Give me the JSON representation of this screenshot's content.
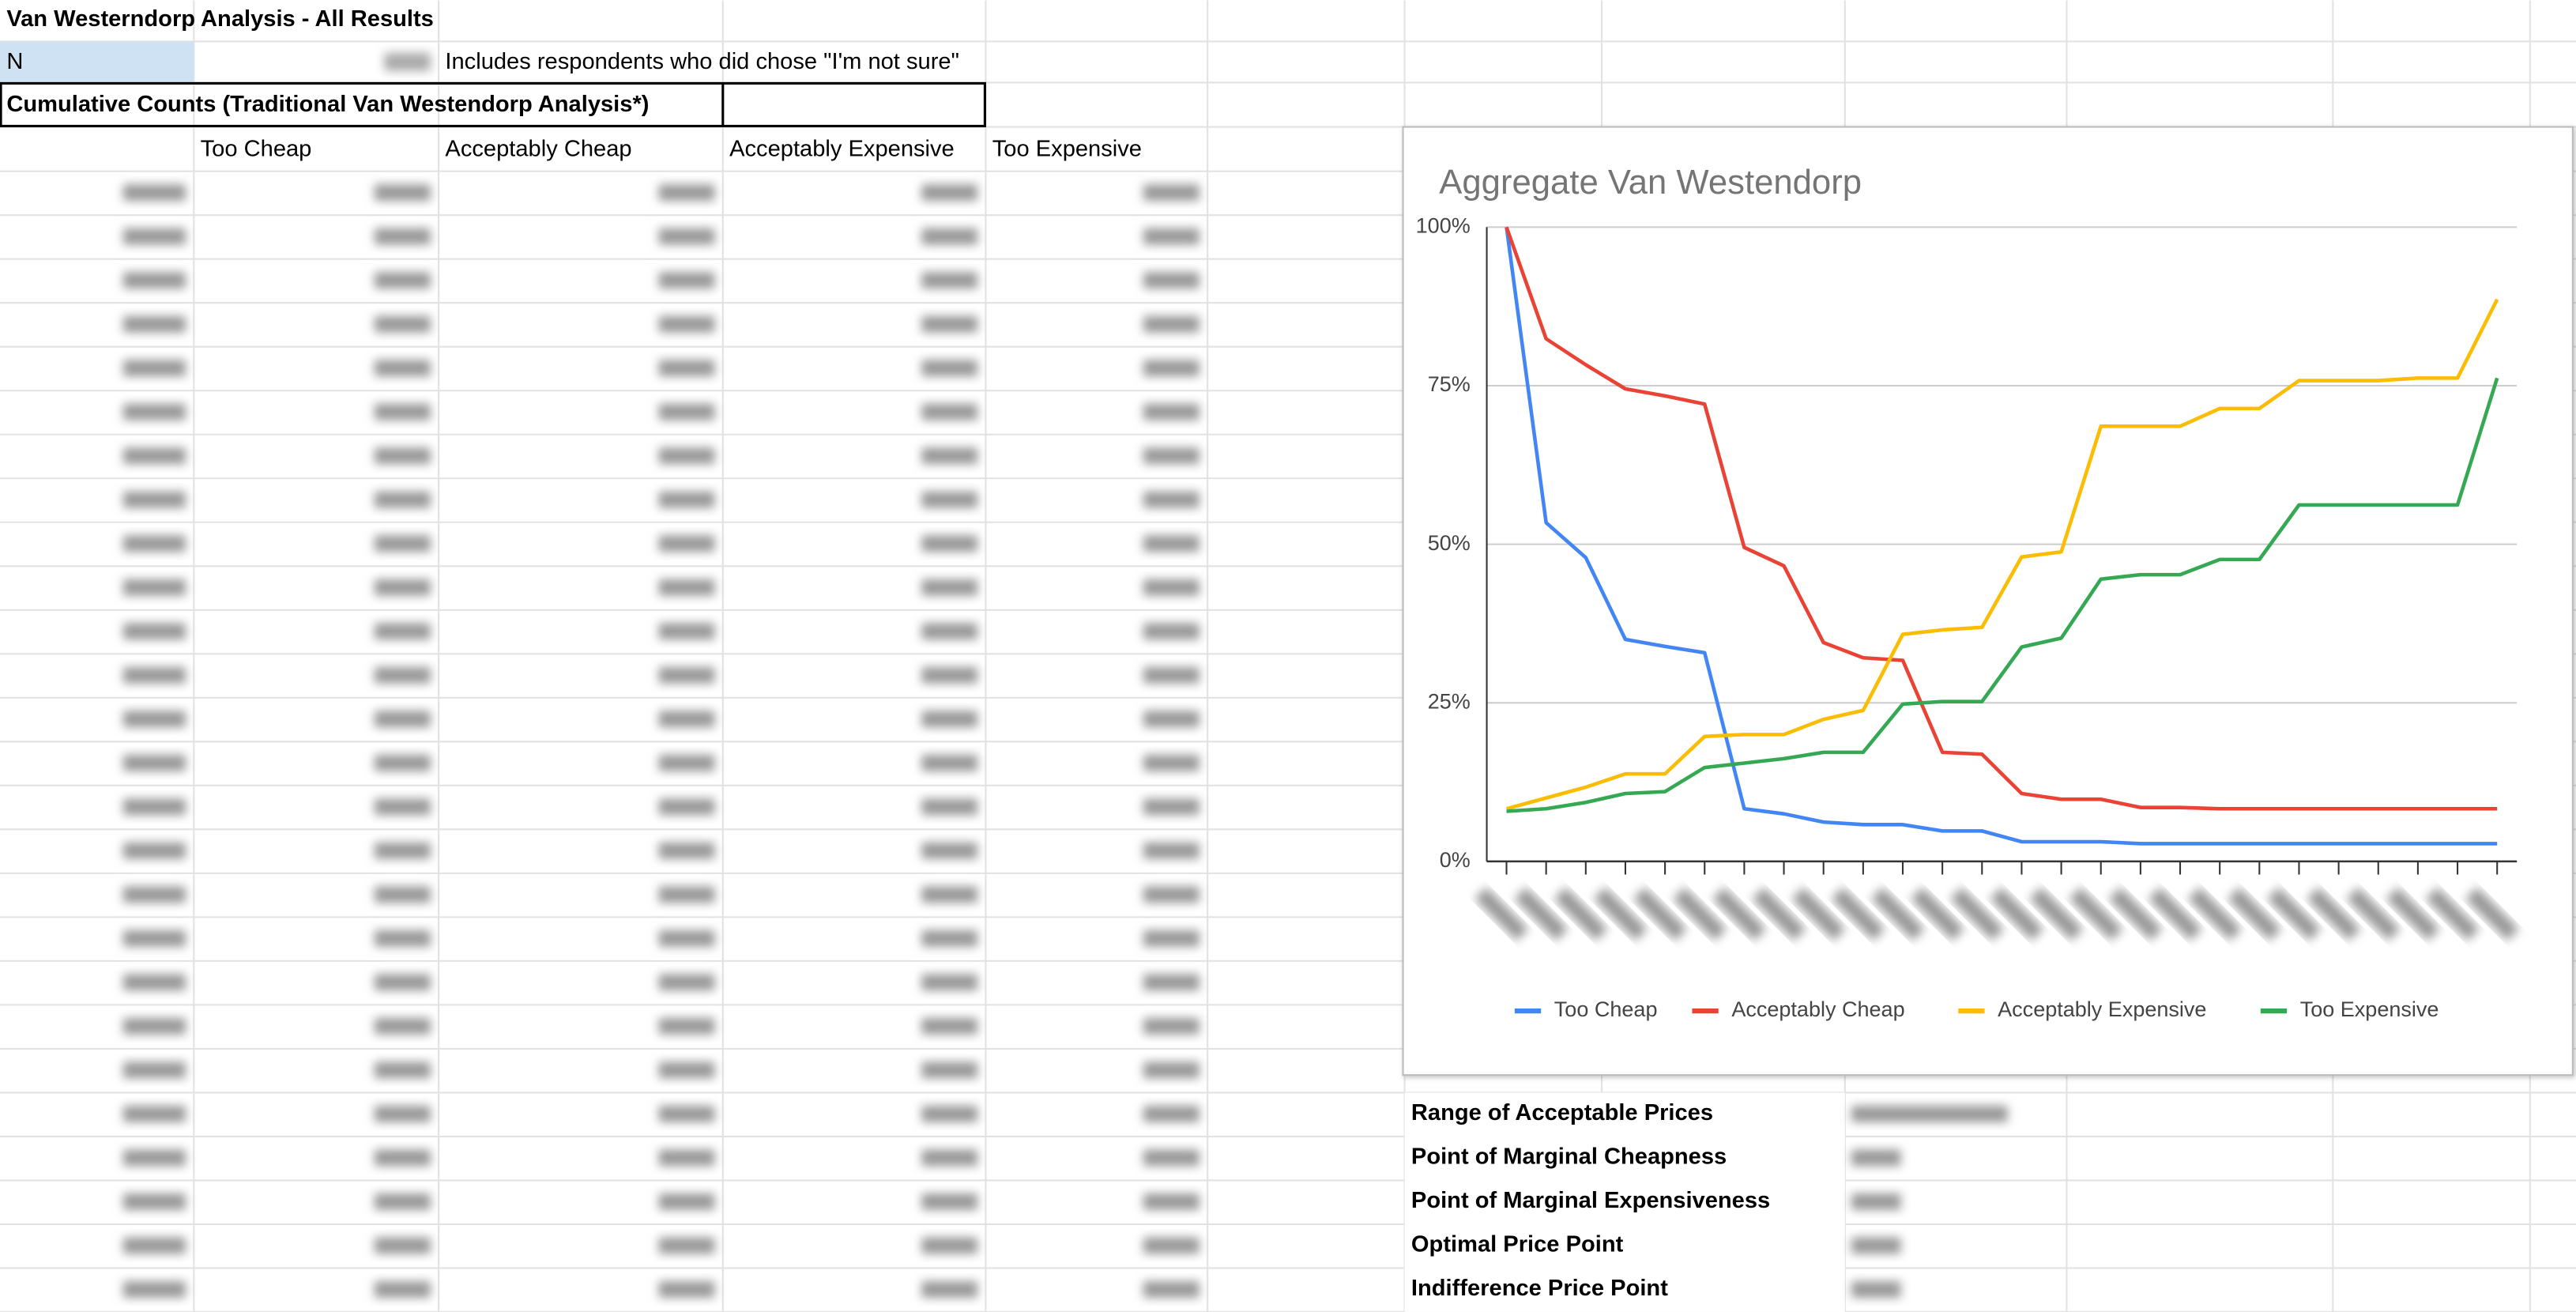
{
  "sheet": {
    "title": "Van Westerndorp Analysis - All Results",
    "n_label": "N",
    "note": "Includes respondents who did chose \"I'm not sure\"",
    "section_title": "Cumulative Counts (Traditional Van Westendorp Analysis*)",
    "headers": [
      "Too Cheap",
      "Acceptably Cheap",
      "Acceptably Expensive",
      "Too Expensive"
    ],
    "summary_labels": [
      "Range of Acceptable Prices",
      "Point of Marginal Cheapness",
      "Point of Marginal Expensiveness",
      "Optimal Price Point",
      "Indifference Price Point"
    ]
  },
  "chart_data": {
    "type": "line",
    "title": "Aggregate Van Westendorp",
    "categories": [
      null,
      null,
      null,
      null,
      null,
      null,
      null,
      null,
      null,
      null,
      null,
      null,
      null,
      null,
      null,
      null,
      null,
      null,
      null,
      null,
      null,
      null,
      null,
      null,
      null,
      null
    ],
    "ylim": [
      0,
      100
    ],
    "yticks": [
      {
        "value": 0,
        "label": "0%"
      },
      {
        "value": 25,
        "label": "25%"
      },
      {
        "value": 50,
        "label": "50%"
      },
      {
        "value": 75,
        "label": "75%"
      },
      {
        "value": 100,
        "label": "100%"
      }
    ],
    "grid": true,
    "legend": "bottom",
    "series": [
      {
        "name": "Too Cheap",
        "color": "#4285f4",
        "values": [
          100,
          53.4,
          47.9,
          35,
          33.9,
          32.9,
          8.3,
          7.5,
          6.2,
          5.8,
          5.8,
          4.8,
          4.8,
          3.1,
          3.1,
          3.1,
          2.8,
          2.8,
          2.8,
          2.8,
          2.8,
          2.8,
          2.8,
          2.8,
          2.8,
          2.8
        ]
      },
      {
        "name": "Acceptably Cheap",
        "color": "#ea4335",
        "values": [
          100,
          82.4,
          78.3,
          74.5,
          73.4,
          72.1,
          49.5,
          46.6,
          34.5,
          32.1,
          31.7,
          17.2,
          16.9,
          10.7,
          9.8,
          9.8,
          8.5,
          8.5,
          8.3,
          8.3,
          8.3,
          8.3,
          8.3,
          8.3,
          8.3,
          8.3
        ]
      },
      {
        "name": "Acceptably Expensive",
        "color": "#fbbc04",
        "values": [
          8.3,
          10.0,
          11.7,
          13.8,
          13.8,
          19.7,
          20.0,
          20.0,
          22.4,
          23.8,
          35.8,
          36.5,
          36.9,
          48.0,
          48.8,
          68.6,
          68.6,
          68.6,
          71.4,
          71.4,
          75.8,
          75.8,
          75.8,
          76.2,
          76.2,
          88.6
        ]
      },
      {
        "name": "Too Expensive",
        "color": "#34a853",
        "values": [
          7.9,
          8.3,
          9.3,
          10.7,
          11.0,
          14.8,
          15.5,
          16.2,
          17.2,
          17.2,
          24.8,
          25.2,
          25.2,
          33.8,
          35.2,
          44.5,
          45.2,
          45.2,
          47.6,
          47.6,
          56.2,
          56.2,
          56.2,
          56.2,
          56.2,
          76.2
        ]
      }
    ]
  }
}
